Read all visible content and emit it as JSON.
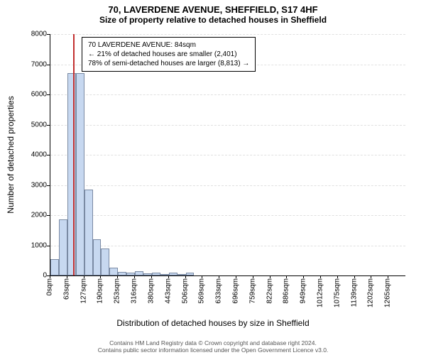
{
  "title_main": "70, LAVERDENE AVENUE, SHEFFIELD, S17 4HF",
  "title_sub": "Size of property relative to detached houses in Sheffield",
  "y_axis_label": "Number of detached properties",
  "x_axis_label": "Distribution of detached houses by size in Sheffield",
  "info_box": {
    "line1": "70 LAVERDENE AVENUE: 84sqm",
    "line2": "← 21% of detached houses are smaller (2,401)",
    "line3": "78% of semi-detached houses are larger (8,813) →"
  },
  "footer": {
    "line1": "Contains HM Land Registry data © Crown copyright and database right 2024.",
    "line2": "Contains public sector information licensed under the Open Government Licence v3.0."
  },
  "histogram": {
    "type": "histogram",
    "bar_color": "#c7d8f0",
    "bar_border": "#7a8aa3",
    "marker_color": "#c23030",
    "background_color": "#ffffff",
    "grid_color": "rgba(0,0,0,0.12)",
    "ylim": [
      0,
      8000
    ],
    "ytick_step": 1000,
    "yticks": [
      0,
      1000,
      2000,
      3000,
      4000,
      5000,
      6000,
      7000,
      8000
    ],
    "xlim_sqm": [
      0,
      1328
    ],
    "xtick_step_sqm": 63.25,
    "xticks": [
      "0sqm",
      "63sqm",
      "127sqm",
      "190sqm",
      "253sqm",
      "316sqm",
      "380sqm",
      "443sqm",
      "506sqm",
      "569sqm",
      "633sqm",
      "696sqm",
      "759sqm",
      "822sqm",
      "886sqm",
      "949sqm",
      "1012sqm",
      "1075sqm",
      "1139sqm",
      "1202sqm",
      "1265sqm"
    ],
    "bin_width_sqm": 31.625,
    "bins": [
      {
        "x_sqm": 0,
        "count": 550
      },
      {
        "x_sqm": 31.6,
        "count": 1850
      },
      {
        "x_sqm": 63.2,
        "count": 6700
      },
      {
        "x_sqm": 94.9,
        "count": 6700
      },
      {
        "x_sqm": 126.5,
        "count": 2850
      },
      {
        "x_sqm": 158.1,
        "count": 1200
      },
      {
        "x_sqm": 189.8,
        "count": 900
      },
      {
        "x_sqm": 221.4,
        "count": 250
      },
      {
        "x_sqm": 253.0,
        "count": 120
      },
      {
        "x_sqm": 284.6,
        "count": 100
      },
      {
        "x_sqm": 316.3,
        "count": 130
      },
      {
        "x_sqm": 347.9,
        "count": 60
      },
      {
        "x_sqm": 379.5,
        "count": 90
      },
      {
        "x_sqm": 411.1,
        "count": 40
      },
      {
        "x_sqm": 442.8,
        "count": 100
      },
      {
        "x_sqm": 474.4,
        "count": 50
      },
      {
        "x_sqm": 506.0,
        "count": 90
      }
    ],
    "marker_sqm": 84
  }
}
